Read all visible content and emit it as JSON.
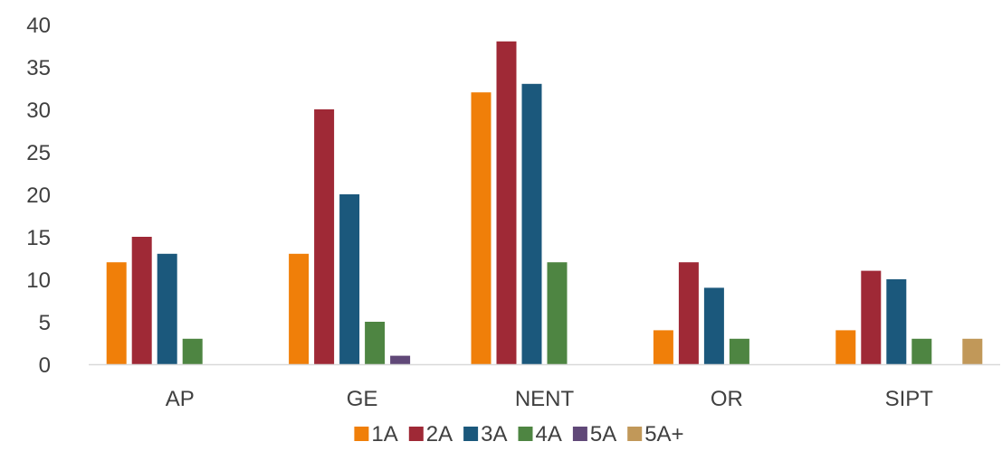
{
  "chart_data": {
    "type": "bar",
    "title": "",
    "xlabel": "",
    "ylabel": "",
    "categories": [
      "AP",
      "GE",
      "NENT",
      "OR",
      "SIPT"
    ],
    "ylim": [
      0,
      40
    ],
    "yticks": [
      0,
      5,
      10,
      15,
      20,
      25,
      30,
      35,
      40
    ],
    "grid": false,
    "legend_position": "bottom",
    "series": [
      {
        "name": "1A",
        "color": "#F07F09",
        "values": [
          12,
          13,
          32,
          4,
          4
        ]
      },
      {
        "name": "2A",
        "color": "#9F2936",
        "values": [
          15,
          30,
          38,
          12,
          11
        ]
      },
      {
        "name": "3A",
        "color": "#1B587C",
        "values": [
          13,
          20,
          33,
          9,
          10
        ]
      },
      {
        "name": "4A",
        "color": "#4E8542",
        "values": [
          3,
          5,
          12,
          3,
          3
        ]
      },
      {
        "name": "5A",
        "color": "#604878",
        "values": [
          0,
          1,
          0,
          0,
          0
        ]
      },
      {
        "name": "5A+",
        "color": "#C19859",
        "values": [
          0,
          0,
          0,
          0,
          3
        ]
      }
    ],
    "axis_color": "#D9D9D9"
  }
}
